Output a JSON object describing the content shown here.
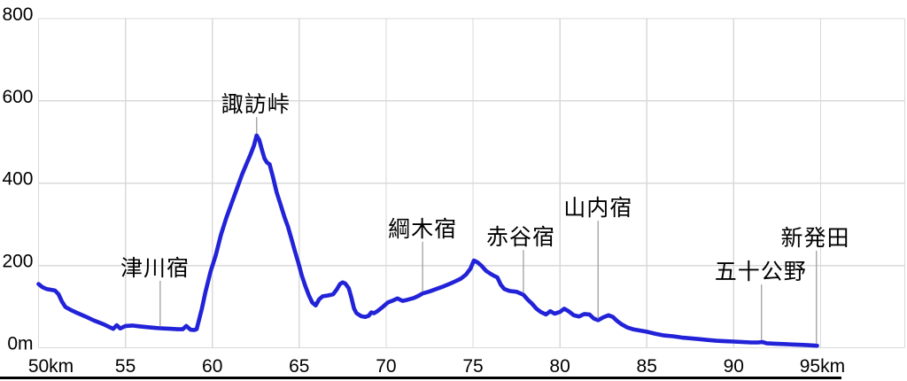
{
  "chart_data": {
    "type": "line",
    "title": "",
    "x_unit": "km",
    "y_unit": "m",
    "xlim": [
      50,
      100
    ],
    "ylim": [
      0,
      800
    ],
    "grid": true,
    "x_grid_interval": 5,
    "y_grid_interval": 200,
    "x_axis_ticks": [
      {
        "value": 50,
        "label": "50km",
        "dx": 14
      },
      {
        "value": 55,
        "label": "55",
        "dx": 0
      },
      {
        "value": 60,
        "label": "60",
        "dx": 0
      },
      {
        "value": 65,
        "label": "65",
        "dx": 0
      },
      {
        "value": 70,
        "label": "70",
        "dx": 0
      },
      {
        "value": 75,
        "label": "75",
        "dx": 0
      },
      {
        "value": 80,
        "label": "80",
        "dx": 0
      },
      {
        "value": 85,
        "label": "85",
        "dx": 0
      },
      {
        "value": 90,
        "label": "90",
        "dx": 0
      },
      {
        "value": 95,
        "label": "95km",
        "dx": 2
      }
    ],
    "y_axis_ticks": [
      {
        "value": 0,
        "label": "0m"
      },
      {
        "value": 200,
        "label": "200"
      },
      {
        "value": 400,
        "label": "400"
      },
      {
        "value": 600,
        "label": "600"
      },
      {
        "value": 800,
        "label": "800"
      }
    ],
    "series": [
      {
        "color": "#2222d8",
        "points": [
          [
            50.0,
            155
          ],
          [
            50.2,
            148
          ],
          [
            50.45,
            143
          ],
          [
            50.7,
            141
          ],
          [
            50.95,
            139
          ],
          [
            51.15,
            130
          ],
          [
            51.35,
            112
          ],
          [
            51.55,
            99
          ],
          [
            51.85,
            92
          ],
          [
            52.2,
            85
          ],
          [
            52.7,
            76
          ],
          [
            53.2,
            66
          ],
          [
            53.7,
            58
          ],
          [
            54.1,
            50
          ],
          [
            54.3,
            46
          ],
          [
            54.5,
            55
          ],
          [
            54.7,
            47
          ],
          [
            55.0,
            53
          ],
          [
            55.4,
            54
          ],
          [
            55.8,
            52
          ],
          [
            56.3,
            50
          ],
          [
            56.8,
            48
          ],
          [
            57.2,
            47
          ],
          [
            57.6,
            46
          ],
          [
            58.0,
            45
          ],
          [
            58.3,
            45
          ],
          [
            58.5,
            53
          ],
          [
            58.75,
            44
          ],
          [
            58.95,
            43
          ],
          [
            59.1,
            45
          ],
          [
            59.4,
            95
          ],
          [
            59.6,
            135
          ],
          [
            59.9,
            185
          ],
          [
            60.2,
            225
          ],
          [
            60.5,
            275
          ],
          [
            60.8,
            315
          ],
          [
            61.1,
            350
          ],
          [
            61.4,
            385
          ],
          [
            61.7,
            420
          ],
          [
            62.0,
            450
          ],
          [
            62.2,
            470
          ],
          [
            62.4,
            492
          ],
          [
            62.55,
            516
          ],
          [
            62.7,
            505
          ],
          [
            62.85,
            482
          ],
          [
            63.0,
            460
          ],
          [
            63.15,
            450
          ],
          [
            63.3,
            446
          ],
          [
            63.5,
            413
          ],
          [
            63.7,
            378
          ],
          [
            63.95,
            345
          ],
          [
            64.15,
            318
          ],
          [
            64.35,
            295
          ],
          [
            64.55,
            265
          ],
          [
            64.75,
            235
          ],
          [
            64.95,
            207
          ],
          [
            65.15,
            176
          ],
          [
            65.35,
            150
          ],
          [
            65.55,
            128
          ],
          [
            65.75,
            110
          ],
          [
            65.95,
            103
          ],
          [
            66.15,
            118
          ],
          [
            66.35,
            125
          ],
          [
            66.65,
            127
          ],
          [
            66.95,
            130
          ],
          [
            67.15,
            141
          ],
          [
            67.35,
            155
          ],
          [
            67.5,
            159
          ],
          [
            67.65,
            156
          ],
          [
            67.85,
            145
          ],
          [
            68.0,
            122
          ],
          [
            68.15,
            96
          ],
          [
            68.3,
            84
          ],
          [
            68.55,
            77
          ],
          [
            68.8,
            75
          ],
          [
            69.0,
            78
          ],
          [
            69.15,
            86
          ],
          [
            69.3,
            84
          ],
          [
            69.5,
            89
          ],
          [
            69.8,
            99
          ],
          [
            70.1,
            110
          ],
          [
            70.4,
            115
          ],
          [
            70.65,
            120
          ],
          [
            70.95,
            114
          ],
          [
            71.25,
            117
          ],
          [
            71.6,
            121
          ],
          [
            71.9,
            127
          ],
          [
            72.1,
            132
          ],
          [
            72.5,
            137
          ],
          [
            72.9,
            143
          ],
          [
            73.3,
            149
          ],
          [
            73.7,
            156
          ],
          [
            74.0,
            162
          ],
          [
            74.3,
            168
          ],
          [
            74.6,
            178
          ],
          [
            74.85,
            192
          ],
          [
            75.05,
            212
          ],
          [
            75.25,
            208
          ],
          [
            75.5,
            199
          ],
          [
            75.75,
            187
          ],
          [
            76.0,
            180
          ],
          [
            76.2,
            175
          ],
          [
            76.4,
            171
          ],
          [
            76.6,
            153
          ],
          [
            76.8,
            143
          ],
          [
            77.1,
            138
          ],
          [
            77.5,
            136
          ],
          [
            77.9,
            129
          ],
          [
            78.15,
            117
          ],
          [
            78.4,
            107
          ],
          [
            78.65,
            95
          ],
          [
            78.9,
            87
          ],
          [
            79.2,
            81
          ],
          [
            79.45,
            89
          ],
          [
            79.7,
            83
          ],
          [
            80.0,
            87
          ],
          [
            80.25,
            95
          ],
          [
            80.5,
            89
          ],
          [
            80.8,
            79
          ],
          [
            81.1,
            76
          ],
          [
            81.4,
            82
          ],
          [
            81.7,
            81
          ],
          [
            81.95,
            71
          ],
          [
            82.2,
            67
          ],
          [
            82.5,
            74
          ],
          [
            82.8,
            79
          ],
          [
            83.05,
            75
          ],
          [
            83.3,
            65
          ],
          [
            83.55,
            57
          ],
          [
            83.85,
            50
          ],
          [
            84.2,
            45
          ],
          [
            84.6,
            42
          ],
          [
            85.0,
            39
          ],
          [
            85.5,
            34
          ],
          [
            86.0,
            30
          ],
          [
            86.5,
            28
          ],
          [
            87.0,
            25
          ],
          [
            87.5,
            23
          ],
          [
            88.0,
            21
          ],
          [
            88.5,
            19
          ],
          [
            89.0,
            17
          ],
          [
            89.5,
            16
          ],
          [
            90.0,
            15
          ],
          [
            90.5,
            14
          ],
          [
            91.0,
            13
          ],
          [
            91.4,
            13
          ],
          [
            91.65,
            14
          ],
          [
            91.9,
            11
          ],
          [
            92.4,
            10
          ],
          [
            92.9,
            9
          ],
          [
            93.4,
            8
          ],
          [
            93.9,
            7
          ],
          [
            94.4,
            6
          ],
          [
            94.8,
            5
          ]
        ]
      }
    ],
    "annotations": [
      {
        "id": "tsugawa-juku",
        "label": "津川宿",
        "km": 57.0,
        "point_elev": 47,
        "label_km": 56.7,
        "label_elev": 195
      },
      {
        "id": "suwa-toge",
        "label": "諏訪峠",
        "km": 62.55,
        "point_elev": 516,
        "label_km": 62.5,
        "label_elev": 593
      },
      {
        "id": "tsunagi-juku",
        "label": "綱木宿",
        "km": 72.1,
        "point_elev": 132,
        "label_km": 72.1,
        "label_elev": 290
      },
      {
        "id": "akatani-juku",
        "label": "赤谷宿",
        "km": 77.9,
        "point_elev": 129,
        "label_km": 77.75,
        "label_elev": 270
      },
      {
        "id": "yamauchi-juku",
        "label": "山内宿",
        "km": 82.2,
        "point_elev": 67,
        "label_km": 82.2,
        "label_elev": 341
      },
      {
        "id": "ijimino",
        "label": "五十公野",
        "km": 91.6,
        "point_elev": 14,
        "label_km": 91.55,
        "label_elev": 186
      },
      {
        "id": "shibata",
        "label": "新発田",
        "km": 94.76,
        "point_elev": 5,
        "label_km": 94.7,
        "label_elev": 268
      }
    ],
    "legend": false
  },
  "colors": {
    "background": "#ffffff",
    "gridline": "#d9d9d9",
    "leader_line": "#a6a6a6",
    "text": "#000000",
    "bottom_border": "#000000"
  }
}
